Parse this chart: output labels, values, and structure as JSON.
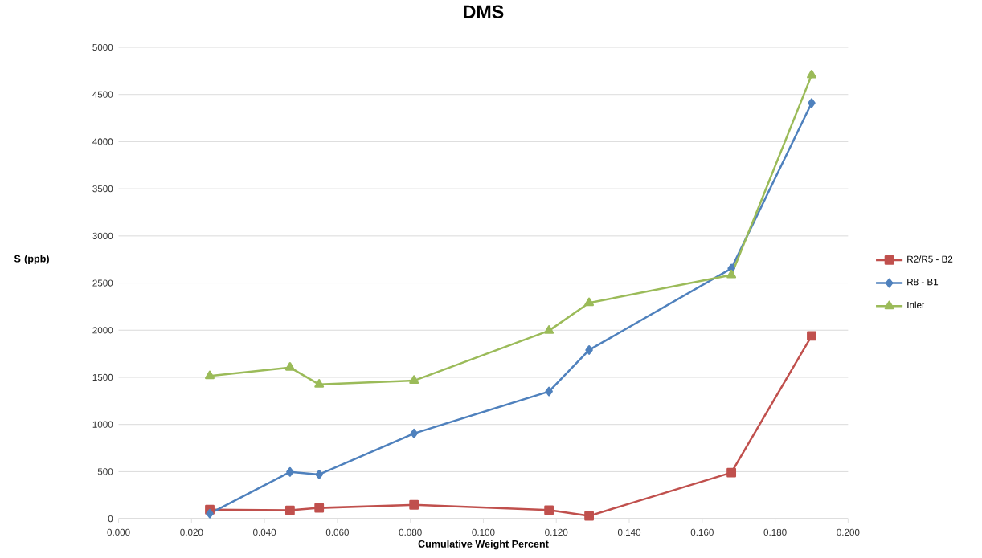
{
  "chart_data": {
    "type": "line",
    "title": "DMS",
    "xlabel": "Cumulative Weight Percent",
    "ylabel": "S (ppb)",
    "x": [
      0.025,
      0.047,
      0.055,
      0.081,
      0.118,
      0.129,
      0.168,
      0.19
    ],
    "series": [
      {
        "name": "R2/R5 - B2",
        "color": "#c0504d",
        "marker": "square",
        "values": [
          97,
          90,
          115,
          148,
          92,
          30,
          490,
          1940
        ]
      },
      {
        "name": "R8 - B1",
        "color": "#4f81bd",
        "marker": "diamond",
        "values": [
          55,
          497,
          470,
          905,
          1350,
          1790,
          2655,
          4410
        ]
      },
      {
        "name": "Inlet",
        "color": "#9bbb59",
        "marker": "triangle",
        "values": [
          1515,
          1605,
          1425,
          1465,
          1995,
          2290,
          2585,
          4705
        ]
      }
    ],
    "xlim": [
      0,
      0.2
    ],
    "xticks": [
      {
        "value": 0,
        "label": "0.000"
      },
      {
        "value": 0.02,
        "label": "0.020"
      },
      {
        "value": 0.04,
        "label": "0.040"
      },
      {
        "value": 0.06,
        "label": "0.060"
      },
      {
        "value": 0.08,
        "label": "0.080"
      },
      {
        "value": 0.1,
        "label": "0.100"
      },
      {
        "value": 0.12,
        "label": "0.120"
      },
      {
        "value": 0.14,
        "label": "0.140"
      },
      {
        "value": 0.16,
        "label": "0.160"
      },
      {
        "value": 0.18,
        "label": "0.180"
      },
      {
        "value": 0.2,
        "label": "0.200"
      }
    ],
    "ylim": [
      0,
      5000
    ],
    "yticks": [
      0,
      500,
      1000,
      1500,
      2000,
      2500,
      3000,
      3500,
      4000,
      4500,
      5000
    ],
    "grid": "y",
    "legend": "right",
    "line_style": "solid"
  }
}
